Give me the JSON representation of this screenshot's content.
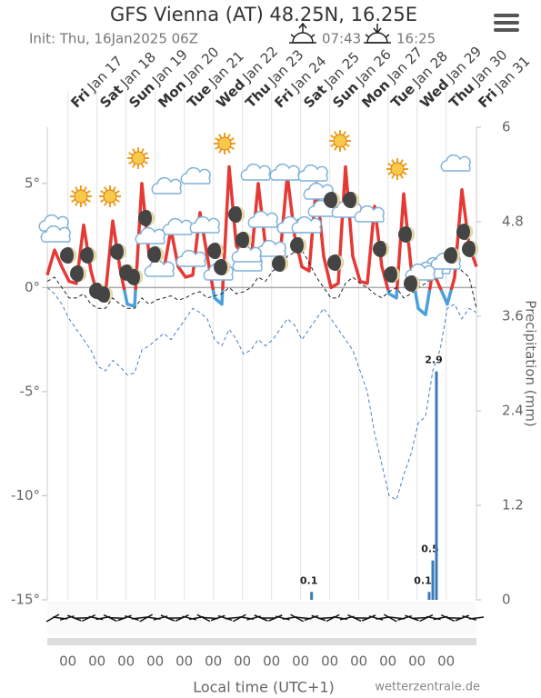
{
  "chart_data": {
    "type": "meteogram",
    "title": "GFS Vienna (AT) 48.25N, 16.25E",
    "subtitle": "Init: Thu, 16Jan2025 06Z",
    "sunrise": "07:43",
    "sunset": "16:25",
    "days": [
      {
        "day": "Fri",
        "date": "Jan 17"
      },
      {
        "day": "Sat",
        "date": "Jan 18"
      },
      {
        "day": "Sun",
        "date": "Jan 19"
      },
      {
        "day": "Mon",
        "date": "Jan 20"
      },
      {
        "day": "Tue",
        "date": "Jan 21"
      },
      {
        "day": "Wed",
        "date": "Jan 22"
      },
      {
        "day": "Thu",
        "date": "Jan 23"
      },
      {
        "day": "Fri",
        "date": "Jan 24"
      },
      {
        "day": "Sat",
        "date": "Jan 25"
      },
      {
        "day": "Sun",
        "date": "Jan 26"
      },
      {
        "day": "Mon",
        "date": "Jan 27"
      },
      {
        "day": "Tue",
        "date": "Jan 28"
      },
      {
        "day": "Wed",
        "date": "Jan 29"
      },
      {
        "day": "Thu",
        "date": "Jan 30"
      },
      {
        "day": "Fri",
        "date": "Jan 31"
      }
    ],
    "x_label": "Local time (UTC+1)",
    "y2_label": "Precipitation (mm)",
    "credit": "wetterzentrale.de",
    "xlim": [
      0,
      354
    ],
    "xticks": [
      {
        "value": 17,
        "label": "00"
      },
      {
        "value": 41,
        "label": "00"
      },
      {
        "value": 65,
        "label": "00"
      },
      {
        "value": 89,
        "label": "00"
      },
      {
        "value": 113,
        "label": "00"
      },
      {
        "value": 137,
        "label": "00"
      },
      {
        "value": 161,
        "label": "00"
      },
      {
        "value": 185,
        "label": "00"
      },
      {
        "value": 209,
        "label": "00"
      },
      {
        "value": 233,
        "label": "00"
      },
      {
        "value": 257,
        "label": "00"
      },
      {
        "value": 281,
        "label": "00"
      },
      {
        "value": 305,
        "label": "00"
      },
      {
        "value": 329,
        "label": "00"
      }
    ],
    "ylim": [
      -15,
      7.7
    ],
    "yticks": [
      {
        "value": 5,
        "label": "5°"
      },
      {
        "value": 0,
        "label": "0°"
      },
      {
        "value": -5,
        "label": "-5°"
      },
      {
        "value": -10,
        "label": "-10°"
      },
      {
        "value": -15,
        "label": "-15°"
      }
    ],
    "y2lim": [
      0,
      6
    ],
    "y2ticks": [
      0,
      1.2,
      2.4,
      3.6,
      4.8,
      6
    ],
    "x": [
      0,
      6,
      12,
      18,
      24,
      30,
      36,
      42,
      48,
      54,
      60,
      66,
      72,
      78,
      84,
      90,
      96,
      102,
      108,
      114,
      120,
      126,
      132,
      138,
      144,
      150,
      156,
      162,
      168,
      174,
      180,
      186,
      192,
      198,
      204,
      210,
      216,
      222,
      228,
      234,
      240,
      246,
      252,
      258,
      264,
      270,
      276,
      282,
      288,
      294,
      300,
      306,
      312,
      318,
      324,
      330,
      336,
      342,
      348,
      354
    ],
    "series": [
      {
        "color": "#e53935",
        "below_color": "#4aa0dc",
        "style": "solid",
        "values": [
          0.6,
          1.8,
          1.0,
          0.3,
          0.2,
          3.0,
          0.8,
          -0.5,
          -0.3,
          3.2,
          0.9,
          -0.8,
          -0.9,
          5.0,
          1.5,
          1.0,
          0.8,
          2.8,
          1.0,
          0.5,
          0.6,
          3.6,
          1.5,
          -0.5,
          -0.8,
          5.8,
          2.0,
          1.5,
          1.2,
          5.0,
          2.0,
          1.8,
          1.5,
          5.4,
          2.5,
          1.0,
          0.8,
          5.0,
          1.5,
          0.0,
          0.2,
          5.8,
          1.5,
          0.3,
          0.2,
          3.9,
          1.0,
          -0.3,
          -0.5,
          4.5,
          1.0,
          -1.0,
          -1.3,
          0.8,
          0.0,
          -0.8,
          0.5,
          4.7,
          2.0,
          1.0
        ]
      },
      {
        "color": "#222222",
        "style": "dashed",
        "values": [
          0.3,
          0.5,
          0,
          -0.5,
          -0.5,
          -0.3,
          -0.8,
          -1,
          -1,
          -0.5,
          -0.8,
          -1,
          -1,
          -0.5,
          -0.8,
          -0.6,
          -0.5,
          -0.4,
          -0.6,
          -0.5,
          -0.3,
          -0.2,
          -0.5,
          -0.4,
          -0.3,
          0,
          -0.3,
          -0.2,
          0,
          0.5,
          0.3,
          0.8,
          1.0,
          1.5,
          1.7,
          1.8,
          1.2,
          0.5,
          0,
          -0.5,
          -0.5,
          0.2,
          0.5,
          0.2,
          0,
          -0.3,
          -0.5,
          -0.2,
          0,
          -0.5,
          -0.3,
          0,
          0.2,
          0.5,
          0.5,
          1.0,
          1.2,
          0.8,
          0.5,
          -1.0
        ]
      },
      {
        "color": "#4a7fc1",
        "style": "dashed",
        "values": [
          0,
          -0.3,
          -0.8,
          -1.5,
          -2,
          -2.5,
          -3,
          -3.8,
          -4,
          -3.5,
          -3.8,
          -4.2,
          -4.1,
          -3,
          -2.8,
          -2.5,
          -2.2,
          -2.5,
          -2,
          -1.5,
          -1,
          -1.2,
          -1.5,
          -2.5,
          -2.8,
          -2,
          -2.5,
          -3.2,
          -3,
          -2.5,
          -2.8,
          -2.5,
          -2,
          -1.5,
          -1.8,
          -2.5,
          -2,
          -1.5,
          -1,
          -1.5,
          -2,
          -2.5,
          -3,
          -4,
          -5,
          -7,
          -8.5,
          -10,
          -10.2,
          -9,
          -8,
          -6.5,
          -6.2,
          -4,
          -3,
          -1,
          -0.8,
          -1.5,
          -1,
          -1.2
        ]
      }
    ],
    "precipitation": {
      "axis": "y2",
      "color": "#3a7ab8",
      "x": [
        218,
        315,
        318,
        321
      ],
      "values": [
        0.1,
        0.1,
        0.5,
        2.9
      ]
    }
  }
}
